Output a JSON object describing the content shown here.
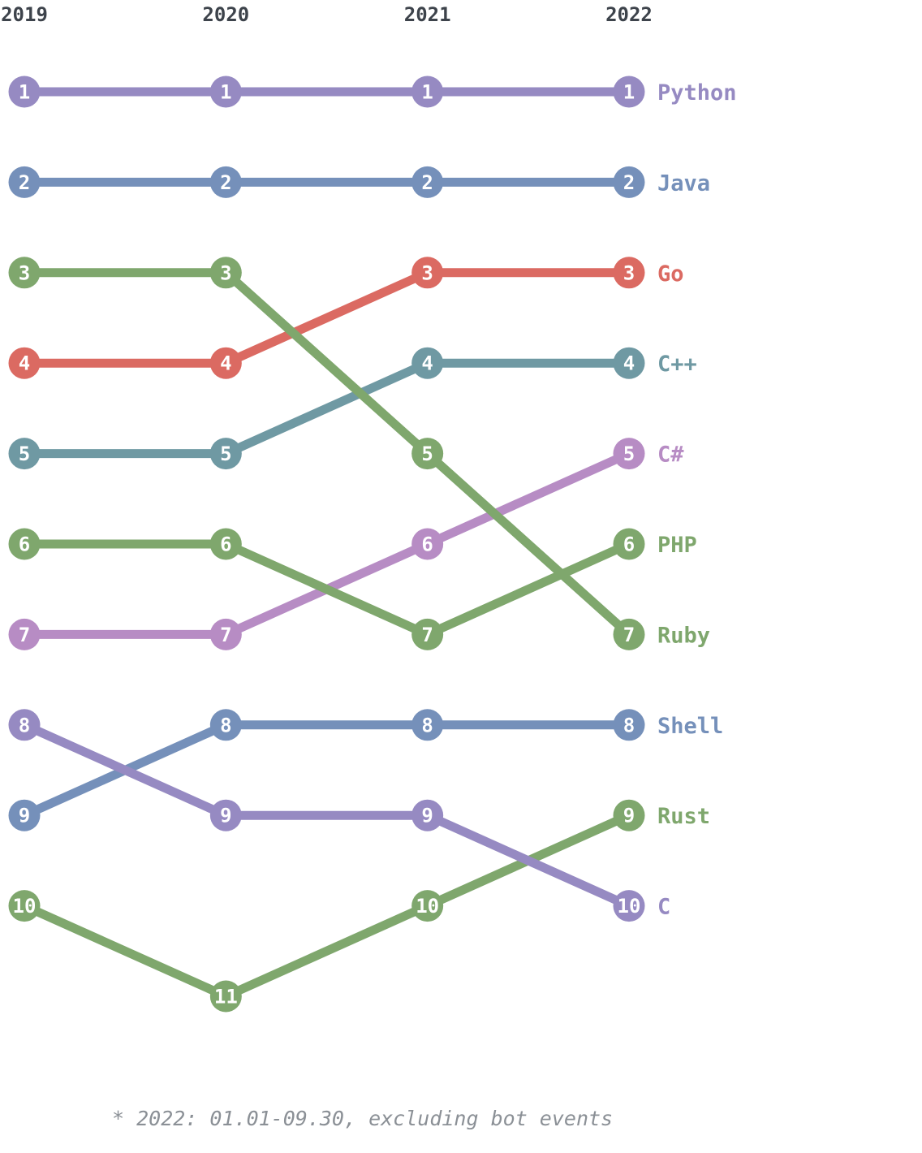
{
  "chart_data": {
    "type": "line",
    "subtype": "bump-rank-chart",
    "title": "",
    "x_labels": [
      "2019",
      "2020",
      "2021",
      "2022"
    ],
    "rank_range": [
      1,
      11
    ],
    "grid": false,
    "legend_position": "right-inline-labels",
    "series": [
      {
        "name": "Python",
        "color": "#968ac2",
        "ranks": [
          1,
          1,
          1,
          1
        ]
      },
      {
        "name": "Java",
        "color": "#7590ba",
        "ranks": [
          2,
          2,
          2,
          2
        ]
      },
      {
        "name": "Go",
        "color": "#db6a62",
        "ranks": [
          4,
          4,
          3,
          3
        ]
      },
      {
        "name": "C++",
        "color": "#6f99a3",
        "ranks": [
          5,
          5,
          4,
          4
        ]
      },
      {
        "name": "C#",
        "color": "#b78cc4",
        "ranks": [
          7,
          7,
          6,
          5
        ]
      },
      {
        "name": "PHP",
        "color": "#7fa76d",
        "ranks": [
          6,
          6,
          7,
          6
        ]
      },
      {
        "name": "Ruby",
        "color": "#7fa76d",
        "ranks": [
          3,
          3,
          5,
          7
        ]
      },
      {
        "name": "Shell",
        "color": "#7590ba",
        "ranks": [
          9,
          8,
          8,
          8
        ]
      },
      {
        "name": "Rust",
        "color": "#7fa76d",
        "ranks": [
          10,
          11,
          10,
          9
        ]
      },
      {
        "name": "C",
        "color": "#968ac2",
        "ranks": [
          8,
          9,
          9,
          10
        ]
      }
    ],
    "footnote": "* 2022: 01.01-09.30, excluding bot events",
    "colors": {
      "background": "#ffffff",
      "year_label": "#3d434b",
      "footnote": "#8b9096",
      "node_number": "#ffffff"
    }
  }
}
